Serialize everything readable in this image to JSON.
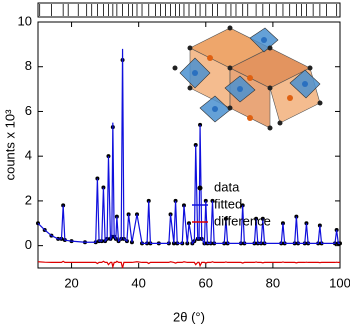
{
  "chart_data": {
    "type": "line",
    "x_label": "2θ (°)",
    "y_label": "counts x 10³",
    "xlim": [
      10,
      100
    ],
    "xticks": [
      20,
      40,
      60,
      80,
      100
    ],
    "ylim": [
      -1,
      10
    ],
    "yticks": [
      0,
      2,
      4,
      6,
      8,
      10
    ],
    "legend": "right",
    "x": [
      10,
      12,
      14,
      16,
      17,
      17.5,
      18,
      20,
      24,
      27.2,
      27.7,
      28.2,
      29,
      29.5,
      30,
      30.6,
      31,
      31.6,
      32,
      32.3,
      32.7,
      33.2,
      33.5,
      34,
      34.8,
      35.2,
      35.6,
      36.5,
      37,
      38,
      39.5,
      41,
      42.5,
      43,
      43.5,
      46,
      49,
      49.5,
      50.5,
      51,
      51.5,
      53,
      53.5,
      54.5,
      55,
      56,
      56.6,
      57,
      57.6,
      58,
      58.3,
      58.8,
      59.6,
      60,
      60.5,
      61.5,
      62,
      62.5,
      65.5,
      66,
      66.5,
      70.5,
      71,
      71.5,
      74.5,
      75,
      75.5,
      76.5,
      77,
      77.5,
      82.5,
      83,
      83.5,
      86.5,
      87,
      87.5,
      89.5,
      90,
      90.5,
      93.5,
      94,
      94.5,
      98.5,
      99,
      99.5,
      100
    ],
    "series": [
      {
        "name": "data",
        "color": "#000000",
        "marker": "dot",
        "values": [
          1.0,
          0.7,
          0.45,
          0.3,
          0.3,
          1.8,
          0.25,
          0.2,
          0.15,
          0.15,
          3.0,
          0.2,
          0.2,
          2.6,
          0.2,
          0.3,
          4.0,
          0.3,
          0.4,
          5.3,
          0.4,
          0.3,
          1.3,
          0.2,
          0.3,
          8.3,
          0.3,
          0.2,
          1.4,
          0.15,
          1.4,
          0.1,
          0.1,
          2.0,
          0.1,
          0.1,
          0.1,
          1.4,
          0.1,
          2.0,
          0.1,
          0.1,
          1.8,
          0.1,
          1.0,
          0.1,
          0.2,
          4.5,
          0.3,
          0.3,
          5.4,
          0.3,
          0.1,
          2.0,
          0.1,
          0.1,
          2.0,
          0.1,
          0.1,
          1.2,
          0.1,
          0.1,
          1.8,
          0.1,
          0.1,
          1.2,
          0.1,
          0.1,
          1.2,
          0.1,
          0.1,
          1.0,
          0.1,
          0.1,
          1.3,
          0.1,
          0.1,
          1.0,
          0.1,
          0.1,
          0.9,
          0.1,
          0.1,
          0.7,
          0.1,
          0.1
        ]
      },
      {
        "name": "fitted",
        "color": "#1010dd",
        "marker": "line",
        "values": [
          1.0,
          0.7,
          0.45,
          0.3,
          0.3,
          1.8,
          0.25,
          0.2,
          0.15,
          0.15,
          3.0,
          0.2,
          0.2,
          2.6,
          0.2,
          0.3,
          4.0,
          0.3,
          0.4,
          5.5,
          0.4,
          0.3,
          1.3,
          0.2,
          0.3,
          8.8,
          0.3,
          0.2,
          1.4,
          0.15,
          1.4,
          0.1,
          0.1,
          2.0,
          0.1,
          0.1,
          0.1,
          1.4,
          0.1,
          2.0,
          0.1,
          0.1,
          1.8,
          0.1,
          1.0,
          0.1,
          0.2,
          4.5,
          0.3,
          0.3,
          5.4,
          0.3,
          0.1,
          2.0,
          0.1,
          0.1,
          2.0,
          0.1,
          0.1,
          1.2,
          0.1,
          0.1,
          1.8,
          0.1,
          0.1,
          1.2,
          0.1,
          0.1,
          1.2,
          0.1,
          0.1,
          1.0,
          0.1,
          0.1,
          1.3,
          0.1,
          0.1,
          1.0,
          0.1,
          0.1,
          0.9,
          0.1,
          0.1,
          0.7,
          0.1,
          0.1
        ]
      },
      {
        "name": "difference",
        "color": "#dd0000",
        "marker": "line",
        "values": [
          -0.72,
          -0.74,
          -0.75,
          -0.75,
          -0.75,
          -0.7,
          -0.75,
          -0.75,
          -0.75,
          -0.75,
          -0.8,
          -0.75,
          -0.75,
          -0.7,
          -0.75,
          -0.75,
          -0.85,
          -0.75,
          -0.75,
          -0.95,
          -0.75,
          -0.75,
          -0.7,
          -0.75,
          -0.75,
          -1.0,
          -0.75,
          -0.75,
          -0.75,
          -0.75,
          -0.72,
          -0.75,
          -0.75,
          -0.8,
          -0.75,
          -0.75,
          -0.75,
          -0.72,
          -0.75,
          -0.78,
          -0.75,
          -0.75,
          -0.72,
          -0.75,
          -0.75,
          -0.75,
          -0.75,
          -0.85,
          -0.75,
          -0.75,
          -0.9,
          -0.75,
          -0.75,
          -0.78,
          -0.75,
          -0.75,
          -0.72,
          -0.75,
          -0.75,
          -0.73,
          -0.75,
          -0.75,
          -0.78,
          -0.75,
          -0.75,
          -0.73,
          -0.75,
          -0.75,
          -0.77,
          -0.75,
          -0.75,
          -0.73,
          -0.75,
          -0.75,
          -0.77,
          -0.75,
          -0.75,
          -0.74,
          -0.75,
          -0.75,
          -0.76,
          -0.75,
          -0.75,
          -0.74,
          -0.75,
          -0.75
        ]
      }
    ],
    "bragg_positions": [
      10.5,
      14,
      17.5,
      19,
      22,
      24.5,
      26,
      27.7,
      29.5,
      31,
      32.3,
      33.5,
      35.2,
      37,
      38.2,
      39.5,
      41,
      43,
      45,
      46.5,
      48,
      49.5,
      51,
      52.2,
      53.5,
      55,
      57,
      58.3,
      60,
      62,
      63.5,
      66,
      67.5,
      69,
      71,
      72.5,
      75,
      77,
      79,
      81,
      83,
      85,
      87,
      88.5,
      90,
      92,
      94,
      96,
      99
    ]
  }
}
